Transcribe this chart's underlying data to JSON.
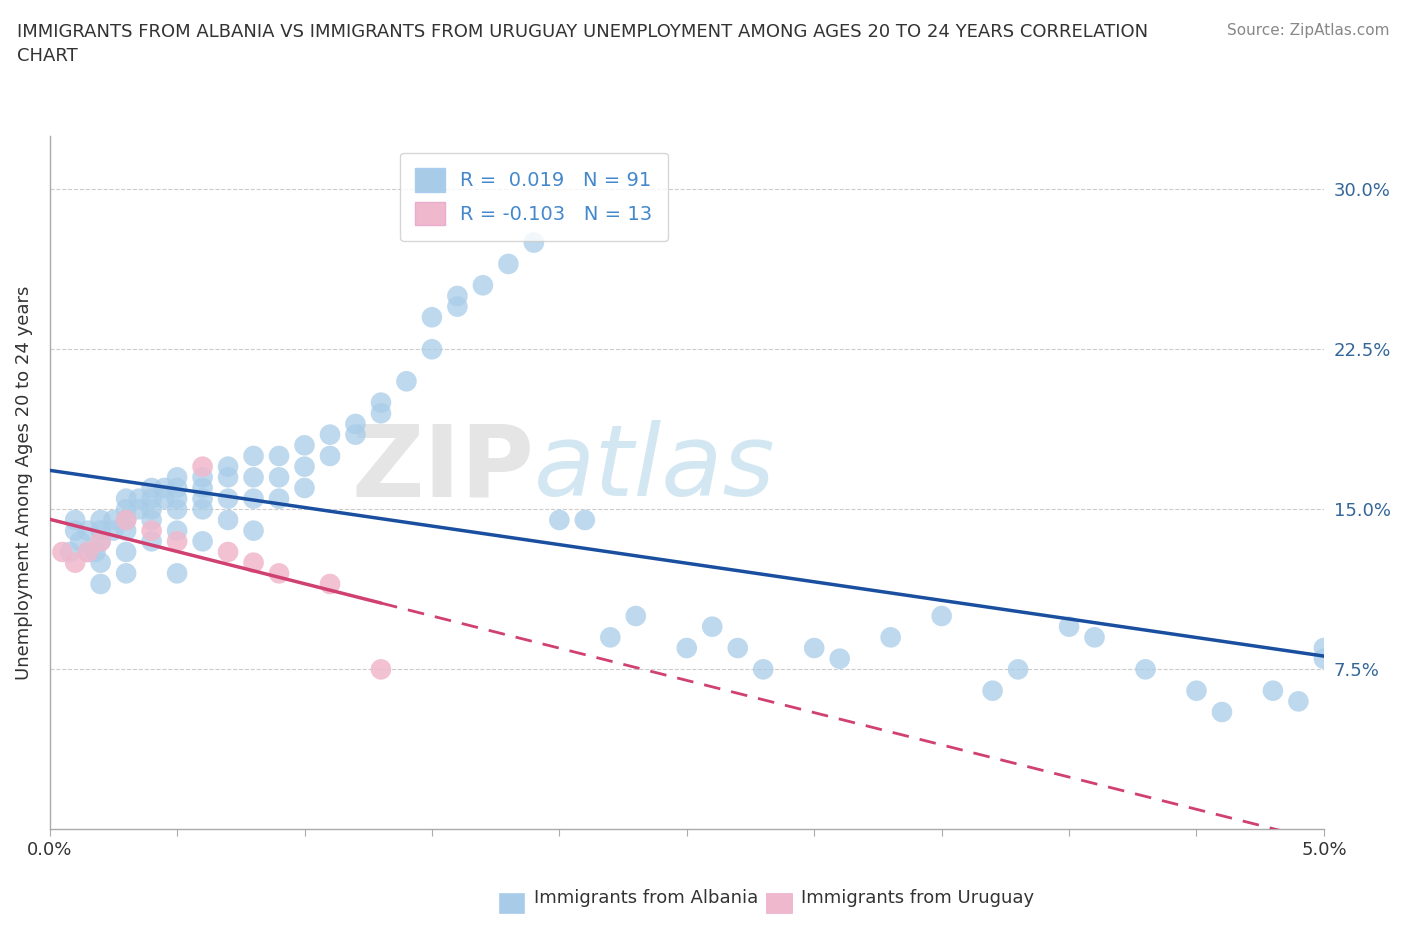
{
  "title": "IMMIGRANTS FROM ALBANIA VS IMMIGRANTS FROM URUGUAY UNEMPLOYMENT AMONG AGES 20 TO 24 YEARS CORRELATION\nCHART",
  "source": "Source: ZipAtlas.com",
  "ylabel": "Unemployment Among Ages 20 to 24 years",
  "xlim": [
    0.0,
    0.05
  ],
  "ylim": [
    0.0,
    0.325
  ],
  "xticks": [
    0.0,
    0.005,
    0.01,
    0.015,
    0.02,
    0.025,
    0.03,
    0.035,
    0.04,
    0.045,
    0.05
  ],
  "xticklabels": [
    "0.0%",
    "",
    "",
    "",
    "",
    "",
    "",
    "",
    "",
    "",
    "5.0%"
  ],
  "yticks": [
    0.0,
    0.075,
    0.15,
    0.225,
    0.3
  ],
  "yticklabels": [
    "",
    "7.5%",
    "15.0%",
    "22.5%",
    "30.0%"
  ],
  "r_albania": 0.019,
  "n_albania": 91,
  "r_uruguay": -0.103,
  "n_uruguay": 13,
  "color_albania": "#a8cce8",
  "color_uruguay": "#f0b8cc",
  "line_color_albania": "#1a4fa0",
  "line_color_uruguay": "#d04070",
  "watermark_zip": "ZIP",
  "watermark_atlas": "atlas",
  "legend_text_color": "#4488cc",
  "albania_x": [
    0.0008,
    0.001,
    0.001,
    0.0012,
    0.0015,
    0.0015,
    0.0018,
    0.002,
    0.002,
    0.002,
    0.002,
    0.002,
    0.0025,
    0.0025,
    0.003,
    0.003,
    0.003,
    0.003,
    0.003,
    0.003,
    0.0035,
    0.0035,
    0.004,
    0.004,
    0.004,
    0.004,
    0.004,
    0.0045,
    0.0045,
    0.005,
    0.005,
    0.005,
    0.005,
    0.005,
    0.005,
    0.006,
    0.006,
    0.006,
    0.006,
    0.006,
    0.007,
    0.007,
    0.007,
    0.007,
    0.008,
    0.008,
    0.008,
    0.008,
    0.009,
    0.009,
    0.009,
    0.01,
    0.01,
    0.01,
    0.011,
    0.011,
    0.012,
    0.012,
    0.013,
    0.013,
    0.014,
    0.015,
    0.015,
    0.016,
    0.016,
    0.017,
    0.018,
    0.019,
    0.02,
    0.021,
    0.022,
    0.023,
    0.025,
    0.026,
    0.027,
    0.028,
    0.03,
    0.031,
    0.033,
    0.035,
    0.037,
    0.038,
    0.04,
    0.041,
    0.043,
    0.045,
    0.046,
    0.048,
    0.049,
    0.05,
    0.05
  ],
  "albania_y": [
    0.13,
    0.14,
    0.145,
    0.135,
    0.14,
    0.13,
    0.13,
    0.145,
    0.14,
    0.135,
    0.125,
    0.115,
    0.145,
    0.14,
    0.155,
    0.15,
    0.145,
    0.14,
    0.13,
    0.12,
    0.155,
    0.15,
    0.16,
    0.155,
    0.15,
    0.145,
    0.135,
    0.16,
    0.155,
    0.165,
    0.16,
    0.155,
    0.15,
    0.14,
    0.12,
    0.165,
    0.16,
    0.155,
    0.15,
    0.135,
    0.17,
    0.165,
    0.155,
    0.145,
    0.175,
    0.165,
    0.155,
    0.14,
    0.175,
    0.165,
    0.155,
    0.18,
    0.17,
    0.16,
    0.185,
    0.175,
    0.19,
    0.185,
    0.2,
    0.195,
    0.21,
    0.24,
    0.225,
    0.25,
    0.245,
    0.255,
    0.265,
    0.275,
    0.145,
    0.145,
    0.09,
    0.1,
    0.085,
    0.095,
    0.085,
    0.075,
    0.085,
    0.08,
    0.09,
    0.1,
    0.065,
    0.075,
    0.095,
    0.09,
    0.075,
    0.065,
    0.055,
    0.065,
    0.06,
    0.085,
    0.08
  ],
  "uruguay_x": [
    0.0005,
    0.001,
    0.0015,
    0.002,
    0.003,
    0.004,
    0.005,
    0.006,
    0.007,
    0.008,
    0.009,
    0.011,
    0.013
  ],
  "uruguay_y": [
    0.13,
    0.125,
    0.13,
    0.135,
    0.145,
    0.14,
    0.135,
    0.17,
    0.13,
    0.125,
    0.12,
    0.115,
    0.075
  ]
}
